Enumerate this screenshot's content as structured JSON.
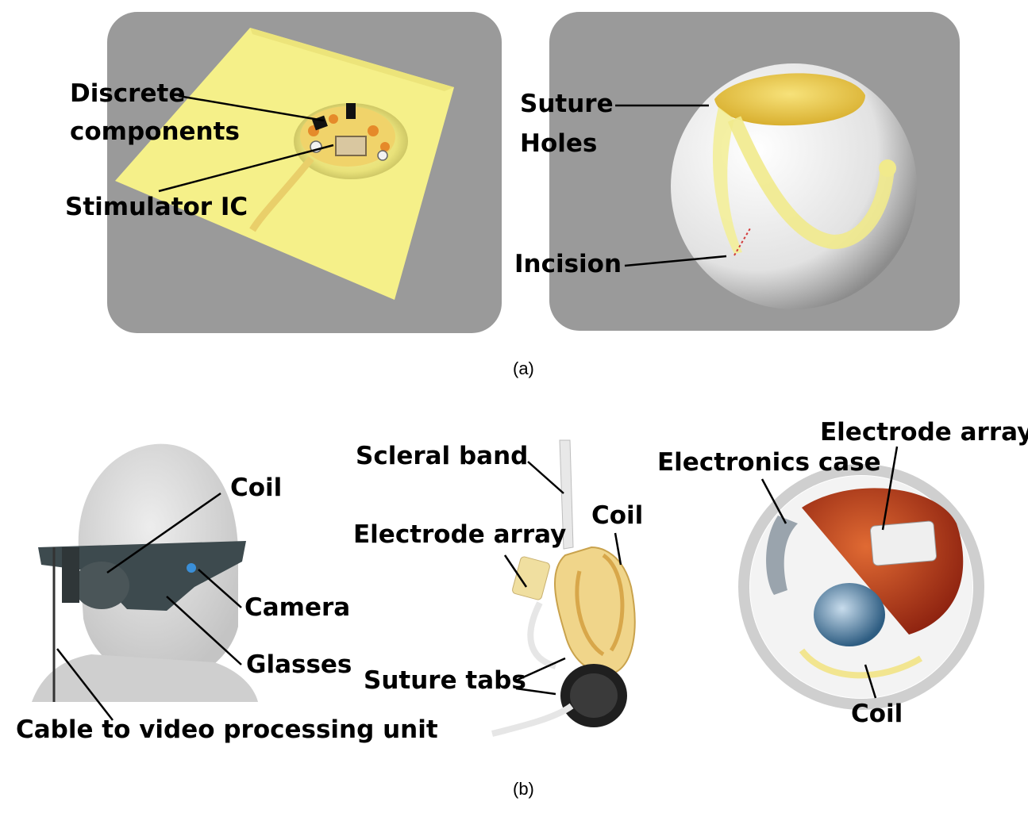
{
  "panel_a": {
    "caption": "(a)",
    "left_labels": {
      "discrete": "Discrete",
      "components": "components",
      "stimulator": "Stimulator IC"
    },
    "right_labels": {
      "suture": "Suture",
      "holes": "Holes",
      "incision": "Incision"
    }
  },
  "panel_b": {
    "caption": "(b)",
    "head_labels": {
      "coil": "Coil",
      "camera": "Camera",
      "glasses": "Glasses",
      "cable": "Cable to video processing unit"
    },
    "implant_labels": {
      "scleral_band": "Scleral band",
      "electrode_array": "Electrode array",
      "coil": "Coil",
      "suture_tabs": "Suture tabs"
    },
    "eye_labels": {
      "electrode_array": "Electrode array",
      "electronics_case": "Electronics case",
      "coil": "Coil"
    }
  },
  "colors": {
    "panel_bg": "#9a9a9a",
    "implant_yellow": "#f6f08a",
    "eye_white": "#ececec",
    "retina_red": "#b33a1c"
  }
}
